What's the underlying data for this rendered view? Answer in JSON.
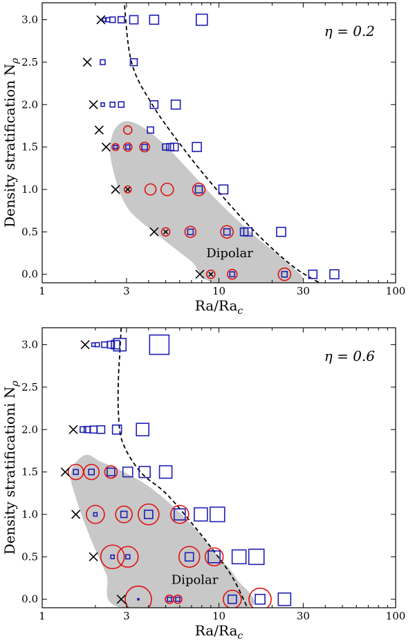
{
  "chart_data": [
    {
      "type": "scatter",
      "id": "top",
      "annotation": "η = 0.2",
      "region_label": "Dipolar",
      "xlabel": "Ra/Ra",
      "xlabel_sub": "c",
      "ylabel": "Density stratification N",
      "ylabel_sub": "ρ",
      "xscale": "log",
      "xlim": [
        1,
        100
      ],
      "ylim": [
        -0.1,
        3.2
      ],
      "xticks": [
        1,
        3,
        10,
        30,
        100
      ],
      "xtick_labels": [
        "1",
        "3",
        "10",
        "30",
        "100"
      ],
      "yticks": [
        0.0,
        0.5,
        1.0,
        1.5,
        2.0,
        2.5,
        3.0
      ],
      "ytick_labels": [
        "0.0",
        "0.5",
        "1.0",
        "1.5",
        "2.0",
        "2.5",
        "3.0"
      ],
      "colors": {
        "cross": "#000000",
        "square": "#1c1cb4",
        "circle": "#e01010",
        "region": "#c8c8c8"
      },
      "crosses": [
        {
          "x": 2.15,
          "y": 3.0
        },
        {
          "x": 1.8,
          "y": 2.5
        },
        {
          "x": 1.95,
          "y": 2.0
        },
        {
          "x": 2.1,
          "y": 1.7
        },
        {
          "x": 2.3,
          "y": 1.5
        },
        {
          "x": 2.6,
          "y": 1.0
        },
        {
          "x": 4.3,
          "y": 0.5
        },
        {
          "x": 7.8,
          "y": 0.0
        },
        {
          "x": 3.05,
          "y": 1.0,
          "size": 3
        },
        {
          "x": 5.0,
          "y": 0.5,
          "size": 3
        },
        {
          "x": 9.0,
          "y": 0.0,
          "size": 3
        }
      ],
      "squares": [
        {
          "x": 2.25,
          "y": 3.0,
          "size": 5
        },
        {
          "x": 2.35,
          "y": 3.0,
          "size": 6
        },
        {
          "x": 2.5,
          "y": 3.0,
          "size": 8
        },
        {
          "x": 2.8,
          "y": 3.0,
          "size": 9
        },
        {
          "x": 3.3,
          "y": 3.0,
          "size": 12
        },
        {
          "x": 4.3,
          "y": 3.0,
          "size": 13
        },
        {
          "x": 8.0,
          "y": 3.0,
          "size": 16
        },
        {
          "x": 2.2,
          "y": 2.5,
          "size": 7
        },
        {
          "x": 3.3,
          "y": 2.5,
          "size": 10
        },
        {
          "x": 2.2,
          "y": 2.0,
          "size": 5
        },
        {
          "x": 2.5,
          "y": 2.0,
          "size": 7
        },
        {
          "x": 2.8,
          "y": 2.0,
          "size": 8
        },
        {
          "x": 4.3,
          "y": 2.0,
          "size": 11
        },
        {
          "x": 5.7,
          "y": 2.0,
          "size": 13
        },
        {
          "x": 4.1,
          "y": 1.7,
          "size": 9
        },
        {
          "x": 2.6,
          "y": 1.5,
          "size": 5
        },
        {
          "x": 3.05,
          "y": 1.5,
          "size": 6
        },
        {
          "x": 3.8,
          "y": 1.5,
          "size": 8
        },
        {
          "x": 5.0,
          "y": 1.5,
          "size": 9
        },
        {
          "x": 5.3,
          "y": 1.5,
          "size": 10
        },
        {
          "x": 5.6,
          "y": 1.5,
          "size": 11
        },
        {
          "x": 7.5,
          "y": 1.5,
          "size": 13
        },
        {
          "x": 7.7,
          "y": 1.0,
          "size": 10
        },
        {
          "x": 10.6,
          "y": 1.0,
          "size": 13
        },
        {
          "x": 6.9,
          "y": 0.5,
          "size": 8
        },
        {
          "x": 11.1,
          "y": 0.5,
          "size": 9
        },
        {
          "x": 13.9,
          "y": 0.5,
          "size": 11
        },
        {
          "x": 14.6,
          "y": 0.5,
          "size": 12
        },
        {
          "x": 22.5,
          "y": 0.5,
          "size": 13
        },
        {
          "x": 11.9,
          "y": 0.0,
          "size": 7
        },
        {
          "x": 23.5,
          "y": 0.0,
          "size": 8
        },
        {
          "x": 34.0,
          "y": 0.0,
          "size": 12
        },
        {
          "x": 45.0,
          "y": 0.0,
          "size": 13
        }
      ],
      "circles": [
        {
          "x": 3.05,
          "y": 1.7,
          "r": 6
        },
        {
          "x": 2.6,
          "y": 1.5,
          "r": 5
        },
        {
          "x": 3.05,
          "y": 1.5,
          "r": 6
        },
        {
          "x": 3.8,
          "y": 1.5,
          "r": 7
        },
        {
          "x": 3.05,
          "y": 1.0,
          "r": 5
        },
        {
          "x": 4.1,
          "y": 1.0,
          "r": 8
        },
        {
          "x": 5.1,
          "y": 1.0,
          "r": 9
        },
        {
          "x": 7.7,
          "y": 1.0,
          "r": 9
        },
        {
          "x": 5.0,
          "y": 0.5,
          "r": 6
        },
        {
          "x": 6.9,
          "y": 0.5,
          "r": 8
        },
        {
          "x": 11.1,
          "y": 0.5,
          "r": 9
        },
        {
          "x": 9.0,
          "y": 0.0,
          "r": 6
        },
        {
          "x": 11.9,
          "y": 0.0,
          "r": 7
        },
        {
          "x": 23.5,
          "y": 0.0,
          "r": 9
        }
      ],
      "boundary_curve": [
        {
          "x": 2.9,
          "y": 3.25
        },
        {
          "x": 3.2,
          "y": 2.5
        },
        {
          "x": 4.2,
          "y": 2.0
        },
        {
          "x": 6.2,
          "y": 1.5
        },
        {
          "x": 9.7,
          "y": 1.0
        },
        {
          "x": 16.0,
          "y": 0.5
        },
        {
          "x": 26.0,
          "y": 0.1
        },
        {
          "x": 37.0,
          "y": -0.1
        }
      ],
      "region": [
        {
          "x": 2.9,
          "y": 1.8
        },
        {
          "x": 3.6,
          "y": 1.75
        },
        {
          "x": 4.8,
          "y": 1.55
        },
        {
          "x": 6.6,
          "y": 1.25
        },
        {
          "x": 10.0,
          "y": 0.85
        },
        {
          "x": 16.0,
          "y": 0.45
        },
        {
          "x": 24.0,
          "y": 0.15
        },
        {
          "x": 28.5,
          "y": -0.1
        },
        {
          "x": 9.5,
          "y": -0.1
        },
        {
          "x": 7.0,
          "y": 0.15
        },
        {
          "x": 4.6,
          "y": 0.45
        },
        {
          "x": 3.0,
          "y": 0.8
        },
        {
          "x": 2.45,
          "y": 1.35
        },
        {
          "x": 2.5,
          "y": 1.65
        }
      ]
    },
    {
      "type": "scatter",
      "id": "bottom",
      "annotation": "η = 0.6",
      "region_label": "Dipolar",
      "xlabel": "Ra/Ra",
      "xlabel_sub": "c",
      "ylabel": "Density stratificationi N",
      "ylabel_sub": "ρ",
      "xscale": "log",
      "xlim": [
        1,
        100
      ],
      "ylim": [
        -0.1,
        3.2
      ],
      "xticks": [
        1,
        3,
        10,
        30,
        100
      ],
      "xtick_labels": [
        "1",
        "3",
        "10",
        "30",
        "100"
      ],
      "yticks": [
        0.0,
        0.5,
        1.0,
        1.5,
        2.0,
        2.5,
        3.0
      ],
      "ytick_labels": [
        "0.0",
        "0.5",
        "1.0",
        "1.5",
        "2.0",
        "2.5",
        "3.0"
      ],
      "colors": {
        "cross": "#000000",
        "square": "#1c1cb4",
        "circle": "#e01010",
        "region": "#c8c8c8"
      },
      "crosses": [
        {
          "x": 1.75,
          "y": 3.0
        },
        {
          "x": 1.5,
          "y": 2.0
        },
        {
          "x": 1.35,
          "y": 1.5
        },
        {
          "x": 1.55,
          "y": 1.0
        },
        {
          "x": 1.95,
          "y": 0.5
        },
        {
          "x": 2.8,
          "y": 0.0
        }
      ],
      "squares": [
        {
          "x": 1.95,
          "y": 3.0,
          "size": 5
        },
        {
          "x": 2.05,
          "y": 3.0,
          "size": 6
        },
        {
          "x": 2.25,
          "y": 3.0,
          "size": 8
        },
        {
          "x": 2.45,
          "y": 3.0,
          "size": 10
        },
        {
          "x": 2.6,
          "y": 3.0,
          "size": 12
        },
        {
          "x": 2.75,
          "y": 3.0,
          "size": 18
        },
        {
          "x": 4.6,
          "y": 3.0,
          "size": 28
        },
        {
          "x": 1.7,
          "y": 2.0,
          "size": 8
        },
        {
          "x": 1.8,
          "y": 2.0,
          "size": 9
        },
        {
          "x": 1.95,
          "y": 2.0,
          "size": 10
        },
        {
          "x": 2.15,
          "y": 2.0,
          "size": 11
        },
        {
          "x": 2.65,
          "y": 2.0,
          "size": 13
        },
        {
          "x": 3.7,
          "y": 2.0,
          "size": 18
        },
        {
          "x": 1.55,
          "y": 1.5,
          "size": 7
        },
        {
          "x": 1.9,
          "y": 1.5,
          "size": 8
        },
        {
          "x": 2.45,
          "y": 1.5,
          "size": 11
        },
        {
          "x": 3.05,
          "y": 1.5,
          "size": 14
        },
        {
          "x": 3.8,
          "y": 1.5,
          "size": 16
        },
        {
          "x": 5.0,
          "y": 1.5,
          "size": 18
        },
        {
          "x": 2.0,
          "y": 1.0,
          "size": 5
        },
        {
          "x": 2.9,
          "y": 1.0,
          "size": 9
        },
        {
          "x": 4.0,
          "y": 1.0,
          "size": 12
        },
        {
          "x": 6.0,
          "y": 1.0,
          "size": 16
        },
        {
          "x": 7.9,
          "y": 1.0,
          "size": 19
        },
        {
          "x": 9.8,
          "y": 1.0,
          "size": 21
        },
        {
          "x": 2.5,
          "y": 0.5,
          "size": 5
        },
        {
          "x": 3.05,
          "y": 0.5,
          "size": 6
        },
        {
          "x": 6.8,
          "y": 0.5,
          "size": 12
        },
        {
          "x": 9.4,
          "y": 0.5,
          "size": 17
        },
        {
          "x": 13.0,
          "y": 0.5,
          "size": 20
        },
        {
          "x": 16.3,
          "y": 0.5,
          "size": 22
        },
        {
          "x": 3.5,
          "y": 0.0,
          "size": 2
        },
        {
          "x": 5.25,
          "y": 0.0,
          "size": 6
        },
        {
          "x": 5.85,
          "y": 0.0,
          "size": 6
        },
        {
          "x": 11.9,
          "y": 0.0,
          "size": 12
        },
        {
          "x": 17.1,
          "y": 0.0,
          "size": 14
        },
        {
          "x": 23.5,
          "y": 0.0,
          "size": 18
        }
      ],
      "circles": [
        {
          "x": 1.55,
          "y": 1.5,
          "r": 11
        },
        {
          "x": 1.9,
          "y": 1.5,
          "r": 11
        },
        {
          "x": 2.45,
          "y": 1.5,
          "r": 9
        },
        {
          "x": 2.0,
          "y": 1.0,
          "r": 13
        },
        {
          "x": 2.9,
          "y": 1.0,
          "r": 12
        },
        {
          "x": 4.0,
          "y": 1.0,
          "r": 15
        },
        {
          "x": 6.0,
          "y": 1.0,
          "r": 13
        },
        {
          "x": 2.5,
          "y": 0.5,
          "r": 17
        },
        {
          "x": 3.05,
          "y": 0.5,
          "r": 15
        },
        {
          "x": 6.8,
          "y": 0.5,
          "r": 15
        },
        {
          "x": 9.4,
          "y": 0.5,
          "r": 13
        },
        {
          "x": 3.5,
          "y": 0.0,
          "r": 19
        },
        {
          "x": 5.25,
          "y": 0.0,
          "r": 6
        },
        {
          "x": 5.85,
          "y": 0.0,
          "r": 6
        },
        {
          "x": 11.9,
          "y": 0.0,
          "r": 13
        },
        {
          "x": 17.1,
          "y": 0.0,
          "r": 16
        }
      ],
      "boundary_curve": [
        {
          "x": 2.8,
          "y": 3.2
        },
        {
          "x": 2.75,
          "y": 2.9
        },
        {
          "x": 2.7,
          "y": 2.6
        },
        {
          "x": 2.7,
          "y": 2.2
        },
        {
          "x": 2.85,
          "y": 1.85
        },
        {
          "x": 3.6,
          "y": 1.5
        },
        {
          "x": 5.0,
          "y": 1.25
        },
        {
          "x": 7.0,
          "y": 0.9
        },
        {
          "x": 9.5,
          "y": 0.55
        },
        {
          "x": 12.0,
          "y": 0.25
        },
        {
          "x": 14.5,
          "y": -0.1
        }
      ],
      "region": [
        {
          "x": 1.75,
          "y": 1.7
        },
        {
          "x": 2.15,
          "y": 1.62
        },
        {
          "x": 2.9,
          "y": 1.5
        },
        {
          "x": 4.2,
          "y": 1.3
        },
        {
          "x": 6.5,
          "y": 0.95
        },
        {
          "x": 9.5,
          "y": 0.55
        },
        {
          "x": 12.5,
          "y": 0.25
        },
        {
          "x": 14.5,
          "y": -0.1
        },
        {
          "x": 2.8,
          "y": -0.1
        },
        {
          "x": 2.3,
          "y": 0.3
        },
        {
          "x": 1.85,
          "y": 0.75
        },
        {
          "x": 1.55,
          "y": 1.2
        },
        {
          "x": 1.45,
          "y": 1.5
        }
      ]
    }
  ]
}
